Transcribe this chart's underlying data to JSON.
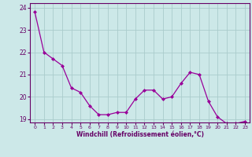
{
  "x": [
    0,
    1,
    2,
    3,
    4,
    5,
    6,
    7,
    8,
    9,
    10,
    11,
    12,
    13,
    14,
    15,
    16,
    17,
    18,
    19,
    20,
    21,
    22,
    23
  ],
  "y": [
    23.8,
    22.0,
    21.7,
    21.4,
    20.4,
    20.2,
    19.6,
    19.2,
    19.2,
    19.3,
    19.3,
    19.9,
    20.3,
    20.3,
    19.9,
    20.0,
    20.6,
    21.1,
    21.0,
    19.8,
    19.1,
    18.8,
    18.8,
    18.9
  ],
  "line_color": "#990099",
  "marker": "D",
  "marker_size": 2.0,
  "bg_color": "#cce8e8",
  "grid_color": "#aacccc",
  "xlabel": "Windchill (Refroidissement éolien,°C)",
  "xlabel_color": "#660066",
  "tick_color": "#660066",
  "axis_color": "#660066",
  "ylim": [
    18.85,
    24.2
  ],
  "xlim": [
    -0.5,
    23.5
  ],
  "yticks": [
    19,
    20,
    21,
    22,
    23,
    24
  ],
  "xticks": [
    0,
    1,
    2,
    3,
    4,
    5,
    6,
    7,
    8,
    9,
    10,
    11,
    12,
    13,
    14,
    15,
    16,
    17,
    18,
    19,
    20,
    21,
    22,
    23
  ]
}
